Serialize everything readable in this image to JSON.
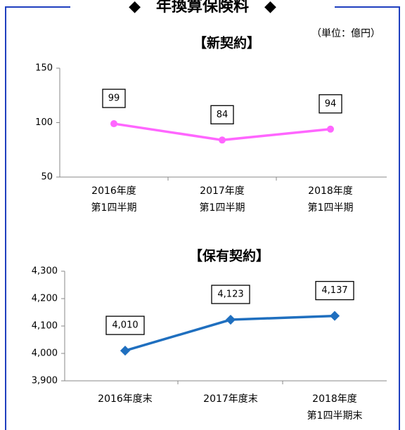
{
  "title": "◆　年換算保険料　◆",
  "unit": "（単位：億円）",
  "chart_data": [
    {
      "type": "line",
      "title": "【新契約】",
      "categories": [
        [
          "2016年度",
          "第1四半期"
        ],
        [
          "2017年度",
          "第1四半期"
        ],
        [
          "2018年度",
          "第1四半期"
        ]
      ],
      "series": [
        {
          "name": "新契約",
          "color": "#ff66ff",
          "values": [
            99,
            84,
            94
          ]
        }
      ],
      "ylim": [
        50,
        150
      ],
      "yticks": [
        50,
        100,
        150
      ]
    },
    {
      "type": "line",
      "title": "【保有契約】",
      "categories": [
        [
          "2016年度末"
        ],
        [
          "2017年度末"
        ],
        [
          "2018年度",
          "第1四半期末"
        ]
      ],
      "series": [
        {
          "name": "保有契約",
          "color": "#1f6fbf",
          "values": [
            4010,
            4123,
            4137
          ],
          "value_labels": [
            "4,010",
            "4,123",
            "4,137"
          ]
        }
      ],
      "ylim": [
        3900,
        4300
      ],
      "yticks": [
        {
          "value": 3900,
          "label": "3,900"
        },
        {
          "value": 4000,
          "label": "4,000"
        },
        {
          "value": 4100,
          "label": "4,100"
        },
        {
          "value": 4200,
          "label": "4,200"
        },
        {
          "value": 4300,
          "label": "4,300"
        }
      ]
    }
  ]
}
